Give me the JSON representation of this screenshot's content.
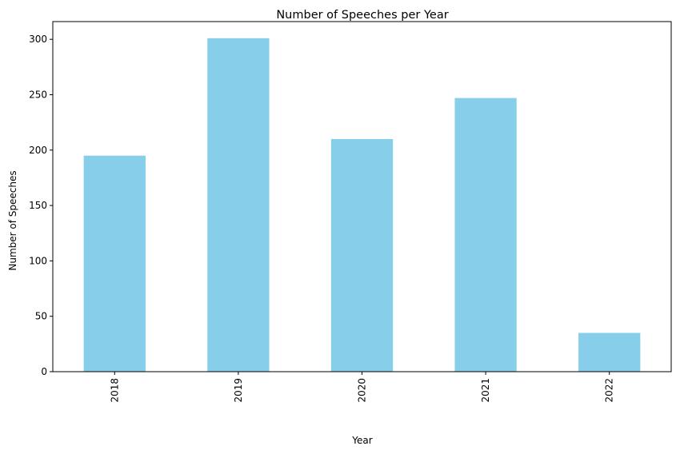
{
  "chart_data": {
    "type": "bar",
    "title": "Number of Speeches per Year",
    "xlabel": "Year",
    "ylabel": "Number of Speeches",
    "categories": [
      "2018",
      "2019",
      "2020",
      "2021",
      "2022"
    ],
    "values": [
      195,
      301,
      210,
      247,
      35
    ],
    "ylim": [
      0,
      316
    ],
    "yticks": [
      0,
      50,
      100,
      150,
      200,
      250,
      300
    ],
    "x_tick_rotation": "vertical",
    "grid": false,
    "legend": false,
    "bar_color": "#87CEEB"
  }
}
